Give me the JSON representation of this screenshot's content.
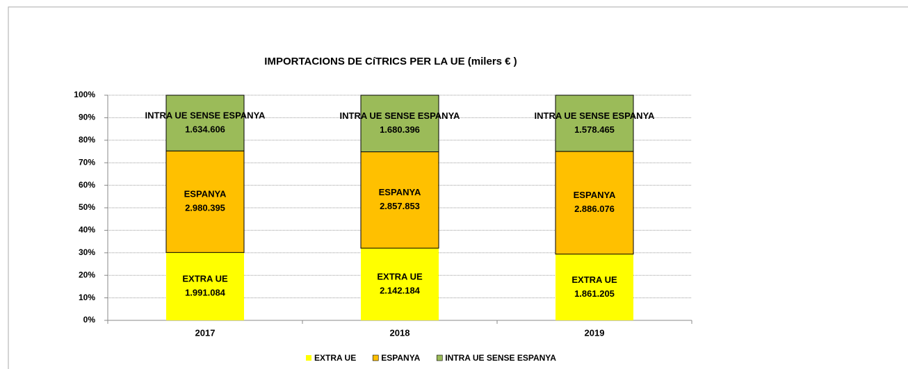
{
  "chart_data": {
    "type": "bar",
    "stacking": "percent",
    "title": "IMPORTACIONS DE CíTRICS PER LA UE (milers € )",
    "categories": [
      "2017",
      "2018",
      "2019"
    ],
    "series": [
      {
        "name": "EXTRA UE",
        "color": "#ffff00",
        "values": [
          1991084,
          2142184,
          1861205
        ],
        "value_labels": [
          "1.991.084",
          "2.142.184",
          "1.861.205"
        ]
      },
      {
        "name": "ESPANYA",
        "color": "#ffc000",
        "values": [
          2980395,
          2857853,
          2886076
        ],
        "value_labels": [
          "2.980.395",
          "2.857.853",
          "2.886.076"
        ]
      },
      {
        "name": "INTRA UE SENSE ESPANYA",
        "color": "#9bbb59",
        "values": [
          1634606,
          1680396,
          1578465
        ],
        "value_labels": [
          "1.634.606",
          "1.680.396",
          "1.578.465"
        ]
      }
    ],
    "ylim": [
      0,
      100
    ],
    "yticks": [
      {
        "value": 0,
        "label": "0%"
      },
      {
        "value": 10,
        "label": "10%"
      },
      {
        "value": 20,
        "label": "20%"
      },
      {
        "value": 30,
        "label": "30%"
      },
      {
        "value": 40,
        "label": "40%"
      },
      {
        "value": 50,
        "label": "50%"
      },
      {
        "value": 60,
        "label": "60%"
      },
      {
        "value": 70,
        "label": "70%"
      },
      {
        "value": 80,
        "label": "80%"
      },
      {
        "value": 90,
        "label": "90%"
      },
      {
        "value": 100,
        "label": "100%"
      }
    ],
    "grid": true,
    "legend": "bottom"
  }
}
